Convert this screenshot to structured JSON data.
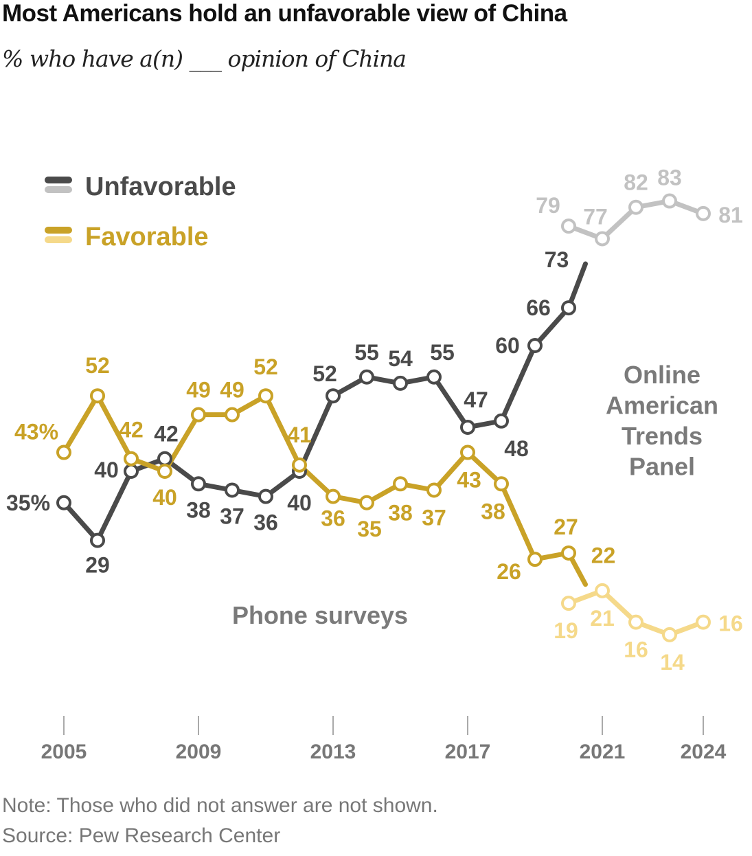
{
  "title": "Most Americans hold an unfavorable view of China",
  "subtitle": "% who have a(n) ___ opinion of China",
  "note": "Note: Those who did not answer are not shown.",
  "source": "Source: Pew Research Center",
  "colors": {
    "unfavorable_phone": "#4a4a4a",
    "unfavorable_online": "#c2c2c2",
    "favorable_phone": "#c9a227",
    "favorable_online": "#f5d98a",
    "axis": "#aaaaaa",
    "annotation": "#7a7a7a"
  },
  "chart_data": {
    "type": "line",
    "x_ticks": [
      "2005",
      "2009",
      "2013",
      "2017",
      "2021",
      "2024"
    ],
    "xlim": [
      2005,
      2024
    ],
    "ylim": [
      0,
      100
    ],
    "legend": {
      "placement": "top-left",
      "entries": [
        "Unfavorable",
        "Favorable"
      ]
    },
    "annotations": {
      "phone": "Phone surveys",
      "online": [
        "Online",
        "American",
        "Trends",
        "Panel"
      ]
    },
    "series": [
      {
        "name": "Unfavorable",
        "mode": "Phone surveys",
        "points": [
          {
            "x": 2005,
            "y": 35,
            "label": "35%"
          },
          {
            "x": 2006,
            "y": 29,
            "label": "29"
          },
          {
            "x": 2007,
            "y": 40,
            "label": "40"
          },
          {
            "x": 2008,
            "y": 42,
            "label": "42"
          },
          {
            "x": 2009,
            "y": 38,
            "label": "38"
          },
          {
            "x": 2010,
            "y": 37,
            "label": "37"
          },
          {
            "x": 2011,
            "y": 36,
            "label": "36"
          },
          {
            "x": 2012,
            "y": 40,
            "label": "40"
          },
          {
            "x": 2013,
            "y": 52,
            "label": "52"
          },
          {
            "x": 2014,
            "y": 55,
            "label": "55"
          },
          {
            "x": 2015,
            "y": 54,
            "label": "54"
          },
          {
            "x": 2016,
            "y": 55,
            "label": "55"
          },
          {
            "x": 2017,
            "y": 47,
            "label": "47"
          },
          {
            "x": 2018,
            "y": 48,
            "label": "48"
          },
          {
            "x": 2019,
            "y": 60,
            "label": "60"
          },
          {
            "x": 2020,
            "y": 66,
            "label": "66"
          },
          {
            "x": 2020.5,
            "y": 73,
            "label": "73"
          }
        ]
      },
      {
        "name": "Unfavorable",
        "mode": "Online American Trends Panel",
        "points": [
          {
            "x": 2020,
            "y": 79,
            "label": "79"
          },
          {
            "x": 2021,
            "y": 77,
            "label": "77"
          },
          {
            "x": 2022,
            "y": 82,
            "label": "82"
          },
          {
            "x": 2023,
            "y": 83,
            "label": "83"
          },
          {
            "x": 2024,
            "y": 81,
            "label": "81"
          }
        ]
      },
      {
        "name": "Favorable",
        "mode": "Phone surveys",
        "points": [
          {
            "x": 2005,
            "y": 43,
            "label": "43%"
          },
          {
            "x": 2006,
            "y": 52,
            "label": "52"
          },
          {
            "x": 2007,
            "y": 42,
            "label": "42"
          },
          {
            "x": 2008,
            "y": 40,
            "label": "40"
          },
          {
            "x": 2009,
            "y": 49,
            "label": "49"
          },
          {
            "x": 2010,
            "y": 49,
            "label": "49"
          },
          {
            "x": 2011,
            "y": 52,
            "label": "52"
          },
          {
            "x": 2012,
            "y": 41,
            "label": "41"
          },
          {
            "x": 2013,
            "y": 36,
            "label": "36"
          },
          {
            "x": 2014,
            "y": 35,
            "label": "35"
          },
          {
            "x": 2015,
            "y": 38,
            "label": "38"
          },
          {
            "x": 2016,
            "y": 37,
            "label": "37"
          },
          {
            "x": 2017,
            "y": 43,
            "label": "43"
          },
          {
            "x": 2018,
            "y": 38,
            "label": "38"
          },
          {
            "x": 2019,
            "y": 26,
            "label": "26"
          },
          {
            "x": 2020,
            "y": 27,
            "label": "27"
          },
          {
            "x": 2020.5,
            "y": 22,
            "label": "22"
          }
        ]
      },
      {
        "name": "Favorable",
        "mode": "Online American Trends Panel",
        "points": [
          {
            "x": 2020,
            "y": 19,
            "label": "19"
          },
          {
            "x": 2021,
            "y": 21,
            "label": "21"
          },
          {
            "x": 2022,
            "y": 16,
            "label": "16"
          },
          {
            "x": 2023,
            "y": 14,
            "label": "14"
          },
          {
            "x": 2024,
            "y": 16,
            "label": "16"
          }
        ]
      }
    ]
  }
}
